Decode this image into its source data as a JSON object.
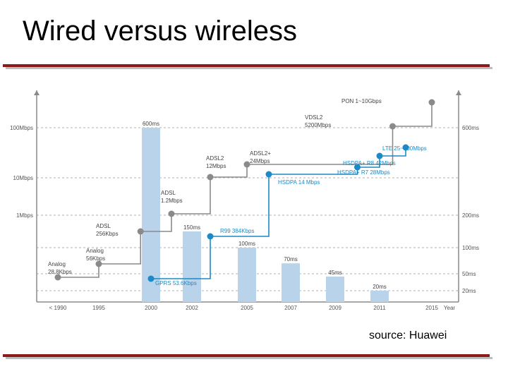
{
  "slide": {
    "title": "Wired versus wireless",
    "source": "source: Huawei"
  },
  "colors": {
    "wired": "#8a8a8a",
    "wireless": "#1b8ac6",
    "latency_bar": "#b9d3ea",
    "title_rule": "#8b1a1a",
    "axis": "#8a8a8a",
    "gridline": "#b0b0b0"
  },
  "chart_data": {
    "type": "line",
    "title": "",
    "x": {
      "ticks": [
        "< 1990",
        "1995",
        "2000",
        "2002",
        "2005",
        "2007",
        "2009",
        "2011",
        "2015",
        "Year"
      ]
    },
    "y_left": {
      "scale": "log",
      "ticks": [
        "100Mbps",
        "10Mbps",
        "1Mbps"
      ]
    },
    "y_right": {
      "ticks": [
        "600ms",
        "200ms",
        "100ms",
        "50ms",
        "20ms"
      ]
    },
    "grid": true,
    "series": [
      {
        "id": "wired",
        "style": "step",
        "points": [
          {
            "year": "< 1990",
            "label": "Analog\n28.8Kbps"
          },
          {
            "year": "1995",
            "label": "Analog\n56Kbps"
          },
          {
            "year": "1999",
            "label": "ADSL\n256Kbps"
          },
          {
            "year": "2001",
            "label": "ADSL\n1.2Mbps"
          },
          {
            "year": "2003",
            "label": "ADSL2\n12Mbps"
          },
          {
            "year": "2005",
            "label": "ADSL2+\n24Mbps"
          },
          {
            "year": "2012",
            "label": "VDSL2\n5200Mbps"
          },
          {
            "year": "2015",
            "label": "PON 1~10Gbps"
          }
        ]
      },
      {
        "id": "wireless",
        "style": "step",
        "points": [
          {
            "year": "2000",
            "label": "GPRS 53.6Kbps"
          },
          {
            "year": "2003",
            "label": "R99 384Kbps"
          },
          {
            "year": "2006",
            "label": "HSDPA 14 Mbps"
          },
          {
            "year": "2010",
            "label": "HSDPA+ R7 28Mbps"
          },
          {
            "year": "2011",
            "label": "HSDPA+ R8 42Mbps"
          },
          {
            "year": "2013",
            "label": "LTE 25~100Mbps"
          }
        ]
      }
    ],
    "latency_bars": [
      {
        "year": "2000",
        "latency_ms": 600,
        "label": "600ms"
      },
      {
        "year": "2002",
        "latency_ms": 150,
        "label": "150ms"
      },
      {
        "year": "2005",
        "latency_ms": 100,
        "label": "100ms"
      },
      {
        "year": "2007",
        "latency_ms": 70,
        "label": "70ms"
      },
      {
        "year": "2009",
        "latency_ms": 45,
        "label": "45ms"
      },
      {
        "year": "2011",
        "latency_ms": 20,
        "label": "20ms"
      }
    ]
  }
}
